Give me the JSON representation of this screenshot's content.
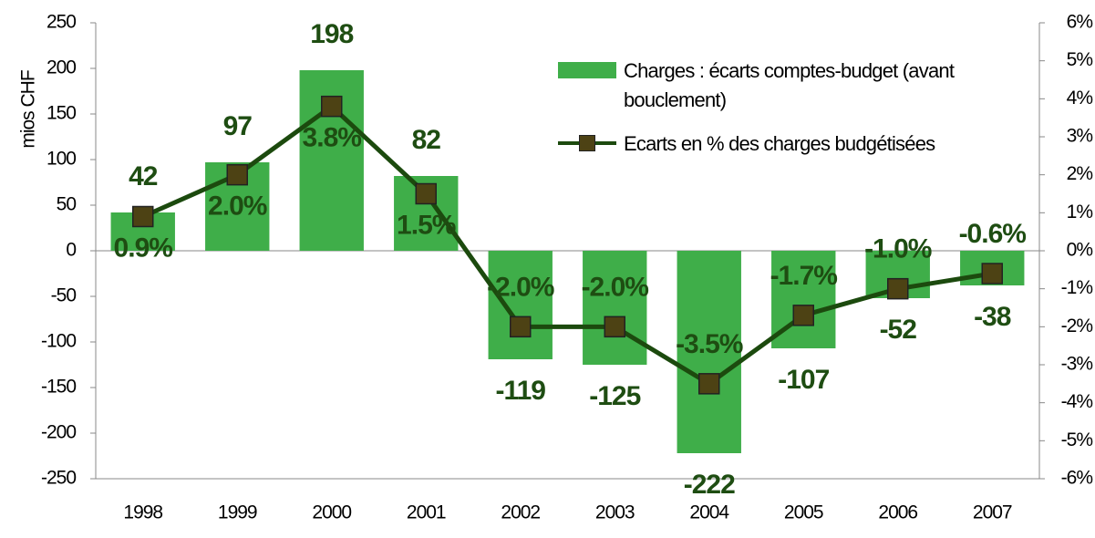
{
  "chart_data": {
    "type": "bar_line",
    "y_label": "mios CHF",
    "categories": [
      "1998",
      "1999",
      "2000",
      "2001",
      "2002",
      "2003",
      "2004",
      "2005",
      "2006",
      "2007"
    ],
    "series": [
      {
        "name": "Charges : écarts comptes-budget (avant bouclement)",
        "type": "bar",
        "color": "#3fae49",
        "values": [
          42,
          97,
          198,
          82,
          -119,
          -125,
          -222,
          -107,
          -52,
          -38
        ]
      },
      {
        "name": "Ecarts en % des charges budgétisées",
        "type": "line",
        "axis": "y2",
        "color": "#1c4a0e",
        "marker_color": "#4d4214",
        "values": [
          0.9,
          2.0,
          3.8,
          1.5,
          -2.0,
          -2.0,
          -3.5,
          -1.7,
          -1.0,
          -0.6
        ],
        "value_labels": [
          "0.9%",
          "2.0%",
          "3.8%",
          "1.5%",
          "-2.0%",
          "-2.0%",
          "-3.5%",
          "-1.7%",
          "-1.0%",
          "-0.6%"
        ]
      }
    ],
    "ylim": [
      -250,
      250
    ],
    "yticks": [
      -250,
      -200,
      -150,
      -100,
      -50,
      0,
      50,
      100,
      150,
      200,
      250
    ],
    "y2lim": [
      -6,
      6
    ],
    "y2ticks": [
      {
        "value": -6,
        "label": "-6%"
      },
      {
        "value": -5,
        "label": "-5%"
      },
      {
        "value": -4,
        "label": "-4%"
      },
      {
        "value": -3,
        "label": "-3%"
      },
      {
        "value": -2,
        "label": "-2%"
      },
      {
        "value": -1,
        "label": "-1%"
      },
      {
        "value": 0,
        "label": "0%"
      },
      {
        "value": 1,
        "label": "1%"
      },
      {
        "value": 2,
        "label": "2%"
      },
      {
        "value": 3,
        "label": "3%"
      },
      {
        "value": 4,
        "label": "4%"
      },
      {
        "value": 5,
        "label": "5%"
      },
      {
        "value": 6,
        "label": "6%"
      }
    ],
    "label_color": "#1e4d12"
  }
}
